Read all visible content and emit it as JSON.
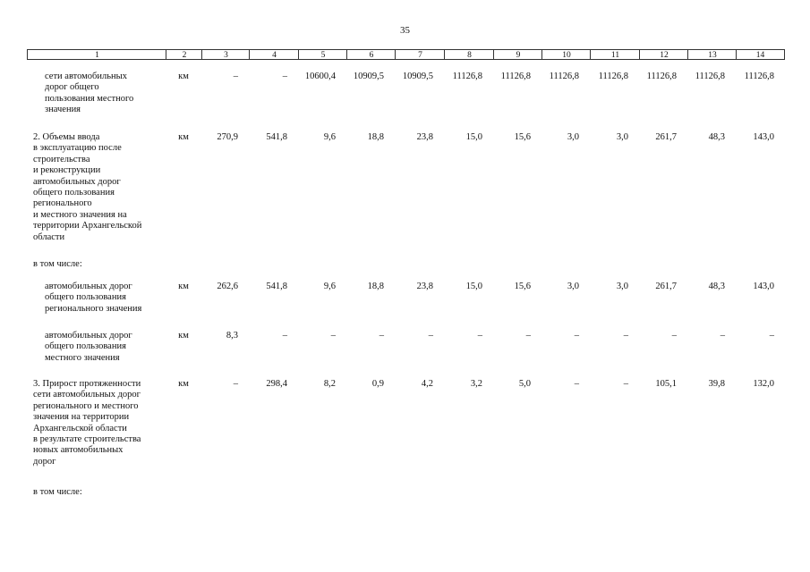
{
  "page_number": "35",
  "table": {
    "header": [
      "1",
      "2",
      "3",
      "4",
      "5",
      "6",
      "7",
      "8",
      "9",
      "10",
      "11",
      "12",
      "13",
      "14"
    ],
    "rows": [
      {
        "label": [
          "сети автомобильных",
          "дорог общего",
          "пользования местного",
          "значения"
        ],
        "unit": "км",
        "values": [
          "–",
          "–",
          "10600,4",
          "10909,5",
          "10909,5",
          "11126,8",
          "11126,8",
          "11126,8",
          "11126,8",
          "11126,8",
          "11126,8",
          "11126,8"
        ]
      },
      {
        "label": [
          "2. Объемы ввода",
          "в эксплуатацию после",
          "строительства",
          "и реконструкции",
          "автомобильных дорог",
          "общего пользования",
          "регионального",
          "и местного значения на",
          "территории Архангельской",
          "области"
        ],
        "unit": "км",
        "values": [
          "270,9",
          "541,8",
          "9,6",
          "18,8",
          "23,8",
          "15,0",
          "15,6",
          "3,0",
          "3,0",
          "261,7",
          "48,3",
          "143,0"
        ]
      },
      {
        "label": [
          "в том числе:"
        ]
      },
      {
        "label": [
          "автомобильных дорог",
          "общего пользования",
          "регионального значения"
        ],
        "unit": "км",
        "values": [
          "262,6",
          "541,8",
          "9,6",
          "18,8",
          "23,8",
          "15,0",
          "15,6",
          "3,0",
          "3,0",
          "261,7",
          "48,3",
          "143,0"
        ]
      },
      {
        "label": [
          "автомобильных дорог",
          "общего пользования",
          "местного значения"
        ],
        "unit": "км",
        "values": [
          "8,3",
          "–",
          "–",
          "–",
          "–",
          "–",
          "–",
          "–",
          "–",
          "–",
          "–",
          "–"
        ]
      },
      {
        "label": [
          "3. Прирост протяженности",
          "сети автомобильных дорог",
          "регионального и местного",
          "значения на территории",
          "Архангельской области",
          "в результате строительства",
          "новых автомобильных",
          "дорог"
        ],
        "unit": "км",
        "values": [
          "–",
          "298,4",
          "8,2",
          "0,9",
          "4,2",
          "3,2",
          "5,0",
          "–",
          "–",
          "105,1",
          "39,8",
          "132,0"
        ]
      },
      {
        "label": [
          "в том числе:"
        ]
      }
    ]
  }
}
